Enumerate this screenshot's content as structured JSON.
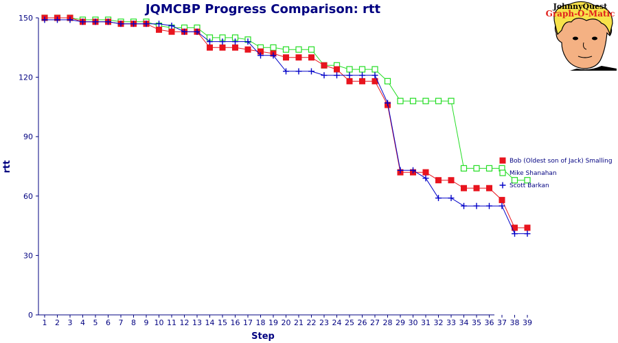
{
  "logo": {
    "line1": "JohnnyQuest",
    "line2": "Graph-O-Matic"
  },
  "chart_data": {
    "type": "line",
    "title": "JQMCBP Progress Comparison: rtt",
    "xlabel": "Step",
    "ylabel": "rtt",
    "ylim": [
      0,
      150
    ],
    "yticks": [
      0,
      30,
      60,
      90,
      120,
      150
    ],
    "x": [
      1,
      2,
      3,
      4,
      5,
      6,
      7,
      8,
      9,
      10,
      11,
      12,
      13,
      14,
      15,
      16,
      17,
      18,
      19,
      20,
      21,
      22,
      23,
      24,
      25,
      26,
      27,
      28,
      29,
      30,
      31,
      32,
      33,
      34,
      35,
      36,
      37,
      38,
      39
    ],
    "legend_position": "right",
    "grid": false,
    "series": [
      {
        "name": "Bob (Oldest son of Jack) Smalling",
        "color": "#e8141e",
        "marker": "filled-square",
        "values": [
          150,
          150,
          150,
          148,
          148,
          148,
          147,
          147,
          147,
          144,
          143,
          143,
          143,
          135,
          135,
          135,
          134,
          133,
          132,
          130,
          130,
          130,
          126,
          124,
          118,
          118,
          118,
          106,
          72,
          72,
          72,
          68,
          68,
          64,
          64,
          64,
          58,
          44,
          44
        ]
      },
      {
        "name": "Mike Shanahan",
        "color": "#22dd22",
        "marker": "open-square",
        "values": [
          150,
          150,
          150,
          149,
          149,
          149,
          148,
          148,
          148,
          146,
          145,
          145,
          145,
          140,
          140,
          140,
          139,
          135,
          135,
          134,
          134,
          134,
          126,
          126,
          124,
          124,
          124,
          118,
          108,
          108,
          108,
          108,
          108,
          74,
          74,
          74,
          74,
          68,
          68
        ]
      },
      {
        "name": "Scott Barkan",
        "color": "#0000c8",
        "marker": "plus",
        "values": [
          149,
          149,
          149,
          148,
          148,
          148,
          147,
          147,
          147,
          147,
          146,
          143,
          143,
          138,
          138,
          138,
          138,
          131,
          131,
          123,
          123,
          123,
          121,
          121,
          121,
          121,
          121,
          107,
          73,
          73,
          69,
          59,
          59,
          55,
          55,
          55,
          55,
          41,
          41
        ]
      }
    ]
  }
}
